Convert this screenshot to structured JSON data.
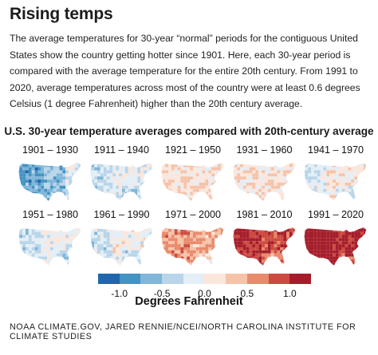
{
  "header": {
    "title": "Rising temps",
    "intro": "The average temperatures for 30-year “normal” periods for the contiguous United States show the country getting hotter since 1901. Here, each 30-year period is compared with the average temperature for the entire 20th century. From 1991 to 2020, average temperatures across most of the country were at least 0.6 degrees Celsius (1 degree Fahrenheit) higher than the 20th century average."
  },
  "figure": {
    "subtitle": "U.S. 30-year temperature averages compared with 20th-century average"
  },
  "maps": [
    {
      "period": "1901 – 1930",
      "anomaly": -0.55
    },
    {
      "period": "1911 – 1940",
      "anomaly": -0.2
    },
    {
      "period": "1921 – 1950",
      "anomaly": 0.15
    },
    {
      "period": "1931 – 1960",
      "anomaly": 0.15
    },
    {
      "period": "1941 – 1970",
      "anomaly": -0.05
    },
    {
      "period": "1951 – 1980",
      "anomaly": -0.2
    },
    {
      "period": "1961 – 1990",
      "anomaly": -0.15
    },
    {
      "period": "1971 – 2000",
      "anomaly": 0.45
    },
    {
      "period": "1981 – 2010",
      "anomaly": 0.9
    },
    {
      "period": "1991 – 2020",
      "anomaly": 1.15
    }
  ],
  "legend": {
    "title": "Degrees Fahrenheit",
    "colors": [
      "#2166ac",
      "#4393c3",
      "#7fb6d9",
      "#b8d5ea",
      "#e3eef6",
      "#fbe6dc",
      "#f6c3a8",
      "#e98a6b",
      "#cc4a3f",
      "#a51d2a"
    ],
    "ticks": [
      {
        "value": -1.0,
        "label": "-1.0"
      },
      {
        "value": -0.5,
        "label": "-0.5"
      },
      {
        "value": 0.0,
        "label": "0.0"
      },
      {
        "value": 0.5,
        "label": "0.5"
      },
      {
        "value": 1.0,
        "label": "1.0"
      }
    ],
    "range": [
      -1.25,
      1.25
    ]
  },
  "credit": "NOAA CLIMATE.GOV, JARED RENNIE/NCEI/NORTH CAROLINA INSTITUTE FOR CLIMATE STUDIES"
}
